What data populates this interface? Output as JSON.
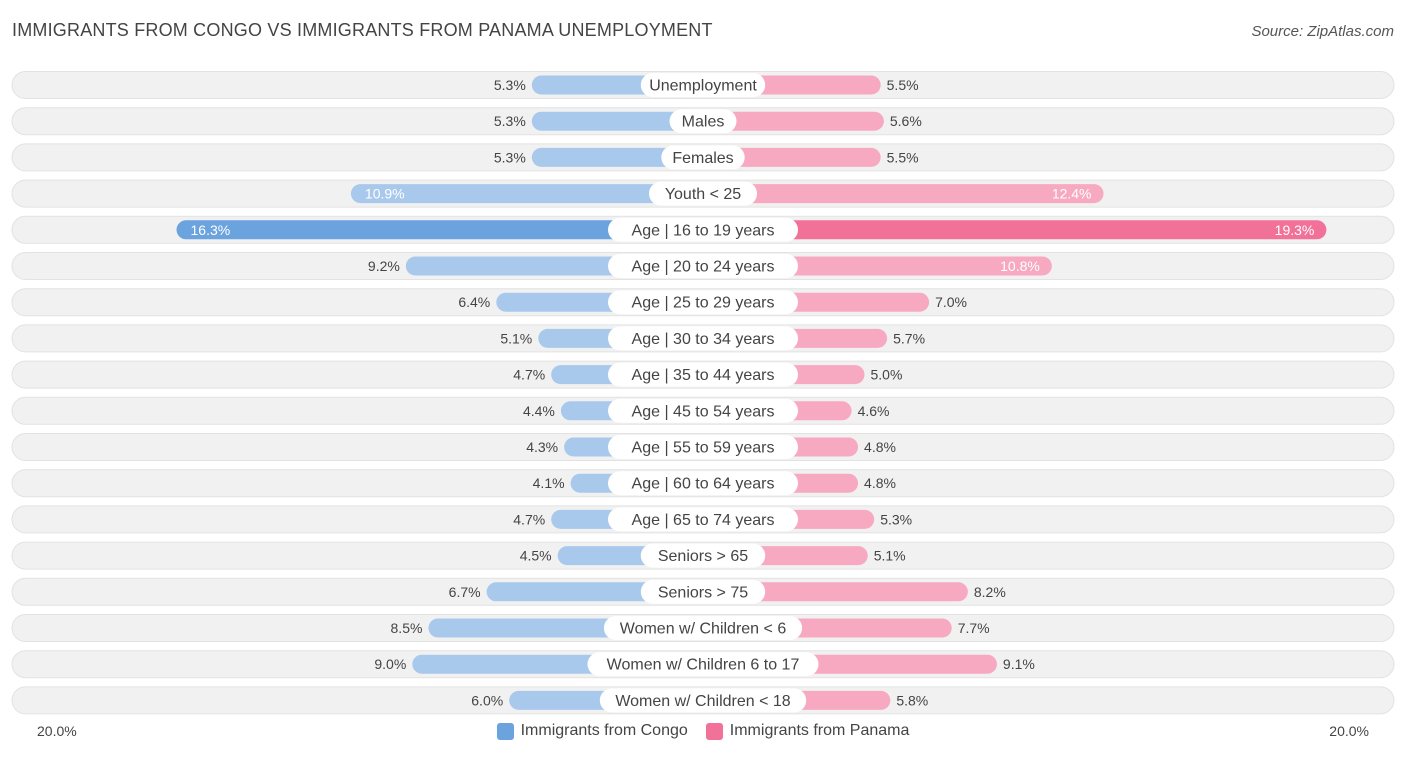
{
  "header": {
    "title": "IMMIGRANTS FROM CONGO VS IMMIGRANTS FROM PANAMA UNEMPLOYMENT",
    "source": "Source: ZipAtlas.com"
  },
  "axis": {
    "left_label": "20.0%",
    "right_label": "20.0%"
  },
  "legend": {
    "items": [
      {
        "label": "Immigrants from Congo",
        "color": "#6aa3de"
      },
      {
        "label": "Immigrants from Panama",
        "color": "#f27199"
      }
    ]
  },
  "chart_data": {
    "type": "bar",
    "orientation": "horizontal-diverging",
    "title": "IMMIGRANTS FROM CONGO VS IMMIGRANTS FROM PANAMA UNEMPLOYMENT",
    "xlim": [
      -20,
      20
    ],
    "categories": [
      "Unemployment",
      "Males",
      "Females",
      "Youth < 25",
      "Age | 16 to 19 years",
      "Age | 20 to 24 years",
      "Age | 25 to 29 years",
      "Age | 30 to 34 years",
      "Age | 35 to 44 years",
      "Age | 45 to 54 years",
      "Age | 55 to 59 years",
      "Age | 60 to 64 years",
      "Age | 65 to 74 years",
      "Seniors > 65",
      "Seniors > 75",
      "Women w/ Children < 6",
      "Women w/ Children 6 to 17",
      "Women w/ Children < 18"
    ],
    "series": [
      {
        "name": "Immigrants from Congo",
        "color": "#6aa3de",
        "color_light": "#a9c9ec",
        "values": [
          5.3,
          5.3,
          5.3,
          10.9,
          16.3,
          9.2,
          6.4,
          5.1,
          4.7,
          4.4,
          4.3,
          4.1,
          4.7,
          4.5,
          6.7,
          8.5,
          9.0,
          6.0
        ],
        "labels": [
          "5.3%",
          "5.3%",
          "5.3%",
          "10.9%",
          "16.3%",
          "9.2%",
          "6.4%",
          "5.1%",
          "4.7%",
          "4.4%",
          "4.3%",
          "4.1%",
          "4.7%",
          "4.5%",
          "6.7%",
          "8.5%",
          "9.0%",
          "6.0%"
        ]
      },
      {
        "name": "Immigrants from Panama",
        "color": "#f27199",
        "color_light": "#f7a9c2",
        "values": [
          5.5,
          5.6,
          5.5,
          12.4,
          19.3,
          10.8,
          7.0,
          5.7,
          5.0,
          4.6,
          4.8,
          4.8,
          5.3,
          5.1,
          8.2,
          7.7,
          9.1,
          5.8
        ],
        "labels": [
          "5.5%",
          "5.6%",
          "5.5%",
          "12.4%",
          "19.3%",
          "10.8%",
          "7.0%",
          "5.7%",
          "5.0%",
          "4.6%",
          "4.8%",
          "4.8%",
          "5.3%",
          "5.1%",
          "8.2%",
          "7.7%",
          "9.1%",
          "5.8%"
        ]
      }
    ],
    "xlabel": "",
    "ylabel": ""
  }
}
